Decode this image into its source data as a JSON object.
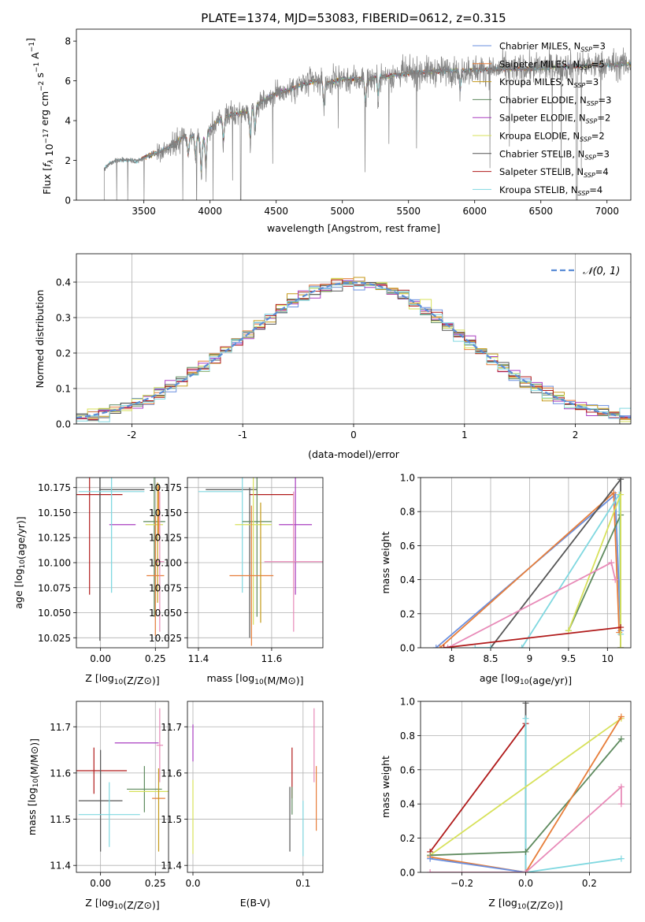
{
  "figure": {
    "title": "PLATE=1374, MJD=53083, FIBERID=0612, z=0.315"
  },
  "colors": {
    "Chabrier MILES": "#6a8fdf",
    "Salpeter MILES": "#e77e3a",
    "Kroupa MILES": "#c59a1a",
    "Chabrier ELODIE": "#5e8a5e",
    "Salpeter ELODIE": "#a93ec0",
    "Kroupa ELODIE": "#d7e15a",
    "Chabrier STELIB": "#555555",
    "Salpeter STELIB": "#b01a1a",
    "Kroupa STELIB": "#80d8e0",
    "data": "#808080",
    "pink": "#e88ab8"
  },
  "chart_data": [
    {
      "id": "spectrum",
      "type": "line",
      "title": "PLATE=1374, MJD=53083, FIBERID=0612, z=0.315",
      "xlabel": "wavelength [Angstrom, rest frame]",
      "ylabel": "Flux [f_λ 10^-17 erg cm^-2 s^-1 A^-1]",
      "xlim": [
        2990,
        7180
      ],
      "ylim": [
        0,
        8.6
      ],
      "xticks": [
        3500,
        4000,
        4500,
        5000,
        5500,
        6000,
        6500,
        7000
      ],
      "yticks": [
        0,
        2,
        4,
        6,
        8
      ],
      "legend_position": "top-right",
      "legend": [
        {
          "series": "Chabrier MILES",
          "label": "Chabrier MILES, N",
          "sub": "SSP",
          "tail": "=3"
        },
        {
          "series": "Salpeter MILES",
          "label": "Salpeter MILES, N",
          "sub": "SSP",
          "tail": "=5"
        },
        {
          "series": "Kroupa MILES",
          "label": "Kroupa MILES, N",
          "sub": "SSP",
          "tail": "=3"
        },
        {
          "series": "Chabrier ELODIE",
          "label": "Chabrier ELODIE, N",
          "sub": "SSP",
          "tail": "=3"
        },
        {
          "series": "Salpeter ELODIE",
          "label": "Salpeter ELODIE, N",
          "sub": "SSP",
          "tail": "=2"
        },
        {
          "series": "Kroupa ELODIE",
          "label": "Kroupa ELODIE, N",
          "sub": "SSP",
          "tail": "=2"
        },
        {
          "series": "Chabrier STELIB",
          "label": "Chabrier STELIB, N",
          "sub": "SSP",
          "tail": "=3"
        },
        {
          "series": "Salpeter STELIB",
          "label": "Salpeter STELIB, N",
          "sub": "SSP",
          "tail": "=4"
        },
        {
          "series": "Kroupa STELIB",
          "label": "Kroupa STELIB, N",
          "sub": "SSP",
          "tail": "=4"
        }
      ],
      "continuum": {
        "x": [
          3200,
          3230,
          3300,
          3400,
          3450,
          3500,
          3600,
          3700,
          3800,
          3900,
          3950,
          4000,
          4100,
          4200,
          4300,
          4400,
          4500,
          4600,
          4700,
          4800,
          4900,
          5000,
          5200,
          5400,
          5600,
          5800,
          6000,
          6200,
          6400,
          6600,
          6800,
          7000,
          7180
        ],
        "y": [
          1.55,
          1.8,
          2.05,
          2.0,
          1.95,
          2.15,
          2.4,
          2.7,
          3.2,
          3.2,
          3.1,
          3.6,
          4.2,
          4.35,
          4.5,
          5.0,
          5.35,
          5.55,
          5.8,
          6.0,
          5.9,
          6.1,
          6.1,
          6.3,
          6.45,
          6.5,
          6.55,
          6.6,
          6.6,
          6.7,
          6.75,
          6.8,
          6.85
        ]
      },
      "data_series_start": 3200,
      "model_series_start": [
        3480,
        3480,
        3480,
        3880,
        3880,
        3880,
        3200,
        3480,
        3200
      ]
    },
    {
      "id": "residuals",
      "type": "bar",
      "xlabel": "(data-model)/error",
      "ylabel": "Normed distribution",
      "xlim": [
        -2.5,
        2.5
      ],
      "ylim": [
        0,
        0.48
      ],
      "xticks": [
        -2,
        -1,
        0,
        1,
        2
      ],
      "yticks": [
        0.0,
        0.1,
        0.2,
        0.3,
        0.4
      ],
      "legend_position": "top-right",
      "legend": [
        {
          "label": "𝒩(0, 1)",
          "style": "dashed"
        }
      ],
      "bin_width": 0.1,
      "bin_start": -2.5
    },
    {
      "id": "age-vs-Z",
      "type": "scatter",
      "xlabel": "Z [log10(Z/Z⊙)]",
      "ylabel": "age  [log10(age/yr)]",
      "xlim": [
        -0.11,
        0.31
      ],
      "ylim": [
        10.015,
        10.185
      ],
      "xticks": [
        0.0,
        0.25
      ],
      "xticklabels": [
        "0.00",
        "0.25"
      ],
      "yticks": [
        10.025,
        10.05,
        10.075,
        10.1,
        10.125,
        10.15,
        10.175
      ],
      "errorbars": [
        {
          "series": "Salpeter STELIB",
          "x": -0.05,
          "y": 10.168,
          "xerr": 0.15,
          "yerr": 0.1
        },
        {
          "series": "Chabrier STELIB",
          "x": -0.003,
          "y": 10.173,
          "xerr": 0.003,
          "yerr": 0.151
        },
        {
          "series": "Kroupa STELIB",
          "x": 0.05,
          "y": 10.171,
          "xerr": 0.15,
          "yerr": 0.101
        },
        {
          "series": "Chabrier STELIB",
          "x": 0.1,
          "y": 10.173,
          "xerr": 0.1,
          "yerr": 0.0
        },
        {
          "series": "Salpeter ELODIE",
          "x": 0.1,
          "y": 10.138,
          "xerr": 0.06,
          "yerr": 0.0
        },
        {
          "series": "Kroupa STELIB",
          "x": 0.05,
          "y": 10.138,
          "xerr": 0.0,
          "yerr": 0.068
        },
        {
          "series": "Chabrier ELODIE",
          "x": 0.245,
          "y": 10.141,
          "xerr": 0.05,
          "yerr": 0.095
        },
        {
          "series": "Kroupa ELODIE",
          "x": 0.245,
          "y": 10.138,
          "xerr": 0.04,
          "yerr": 0.0
        },
        {
          "series": "Kroupa MILES",
          "x": 0.26,
          "y": 10.12,
          "xerr": 0.0,
          "yerr": 0.06
        },
        {
          "series": "Salpeter MILES",
          "x": 0.25,
          "y": 10.087,
          "xerr": 0.04,
          "yerr": 0.06
        },
        {
          "series": "pink",
          "x": 0.27,
          "y": 10.101,
          "xerr": 0.02,
          "yerr": 0.07
        },
        {
          "series": "Salpeter MILES",
          "x": 0.265,
          "y": 10.152,
          "xerr": 0.0,
          "yerr": 0.025
        }
      ]
    },
    {
      "id": "age-vs-mass",
      "type": "scatter",
      "xlabel": "mass [log10(M/M⊙)]",
      "ylabel": "",
      "xlim": [
        11.37,
        11.74
      ],
      "ylim": [
        10.015,
        10.185
      ],
      "xticks": [
        11.4,
        11.6
      ],
      "xticklabels": [
        "11.4",
        "11.6"
      ],
      "yticks": [
        10.025,
        10.05,
        10.075,
        10.1,
        10.125,
        10.15,
        10.175
      ],
      "errorbars": [
        {
          "series": "Kroupa STELIB",
          "x": 11.46,
          "y": 10.171,
          "xerr": 0.06,
          "yerr": 0.0
        },
        {
          "series": "Chabrier STELIB",
          "x": 11.49,
          "y": 10.173,
          "xerr": 0.07,
          "yerr": 0.0
        },
        {
          "series": "Salpeter STELIB",
          "x": 11.6,
          "y": 10.168,
          "xerr": 0.06,
          "yerr": 0.0
        },
        {
          "series": "Kroupa STELIB",
          "x": 11.52,
          "y": 10.138,
          "xerr": 0.0,
          "yerr": 0.068
        },
        {
          "series": "Chabrier STELIB",
          "x": 11.54,
          "y": 10.1,
          "xerr": 0.0,
          "yerr": 0.075
        },
        {
          "series": "Chabrier ELODIE",
          "x": 11.56,
          "y": 10.141,
          "xerr": 0.04,
          "yerr": 0.095
        },
        {
          "series": "Kroupa ELODIE",
          "x": 11.55,
          "y": 10.138,
          "xerr": 0.05,
          "yerr": 0.1
        },
        {
          "series": "Salpeter ELODIE",
          "x": 11.665,
          "y": 10.138,
          "xerr": 0.045,
          "yerr": 0.07
        },
        {
          "series": "Salpeter MILES",
          "x": 11.545,
          "y": 10.087,
          "xerr": 0.06,
          "yerr": 0.07
        },
        {
          "series": "pink",
          "x": 11.66,
          "y": 10.101,
          "xerr": 0.08,
          "yerr": 0.07
        },
        {
          "series": "Kroupa MILES",
          "x": 11.57,
          "y": 10.1,
          "xerr": 0.0,
          "yerr": 0.06
        }
      ]
    },
    {
      "id": "mass-weight-vs-age",
      "type": "line",
      "xlabel": "age  [log10(age/yr)]",
      "ylabel": "mass weight",
      "xlim": [
        7.6,
        10.3
      ],
      "ylim": [
        0.0,
        1.0
      ],
      "xticks": [
        8.0,
        8.5,
        9.0,
        9.5,
        10.0
      ],
      "yticks": [
        0.0,
        0.2,
        0.4,
        0.6,
        0.8,
        1.0
      ],
      "lines": [
        {
          "series": "Chabrier MILES",
          "x": [
            7.8,
            10.1,
            10.17
          ],
          "y": [
            0.0,
            0.9,
            0.1
          ]
        },
        {
          "series": "Salpeter MILES",
          "x": [
            7.85,
            10.08,
            10.15
          ],
          "y": [
            0.0,
            0.91,
            0.09
          ]
        },
        {
          "series": "Chabrier STELIB",
          "x": [
            8.5,
            10.17,
            10.17
          ],
          "y": [
            0.0,
            0.99,
            0.0
          ]
        },
        {
          "series": "Kroupa STELIB",
          "x": [
            8.9,
            10.15,
            10.17
          ],
          "y": [
            0.0,
            0.9,
            0.08
          ]
        },
        {
          "series": "Kroupa STELIB",
          "x": [
            8.3,
            8.5
          ],
          "y": [
            0.0,
            0.0
          ]
        },
        {
          "series": "Chabrier ELODIE",
          "x": [
            9.5,
            10.17,
            10.17
          ],
          "y": [
            0.1,
            0.78,
            0.0
          ]
        },
        {
          "series": "Kroupa ELODIE",
          "x": [
            9.5,
            10.17,
            10.17
          ],
          "y": [
            0.1,
            0.9,
            0.0
          ]
        },
        {
          "series": "pink",
          "x": [
            7.95,
            10.05,
            10.1
          ],
          "y": [
            0.0,
            0.5,
            0.4
          ]
        },
        {
          "series": "Salpeter STELIB",
          "x": [
            7.9,
            10.17
          ],
          "y": [
            0.0,
            0.12
          ]
        }
      ]
    },
    {
      "id": "mass-vs-Z",
      "type": "scatter",
      "xlabel": "Z [log10(Z/Z⊙)]",
      "ylabel": "mass [log10(M/M⊙)]",
      "xlim": [
        -0.11,
        0.31
      ],
      "ylim": [
        11.385,
        11.755
      ],
      "xticks": [
        0.0,
        0.25
      ],
      "xticklabels": [
        "0.00",
        "0.25"
      ],
      "yticks": [
        11.4,
        11.5,
        11.6,
        11.7
      ],
      "errorbars": [
        {
          "series": "Salpeter STELIB",
          "x": -0.03,
          "y": 11.605,
          "xerr": 0.15,
          "yerr": 0.05
        },
        {
          "series": "Chabrier STELIB",
          "x": 0.0,
          "y": 11.54,
          "xerr": 0.1,
          "yerr": 0.11
        },
        {
          "series": "Kroupa STELIB",
          "x": 0.04,
          "y": 11.51,
          "xerr": 0.14,
          "yerr": 0.07
        },
        {
          "series": "Salpeter ELODIE",
          "x": 0.165,
          "y": 11.665,
          "xerr": 0.1,
          "yerr": 0.0
        },
        {
          "series": "Chabrier ELODIE",
          "x": 0.2,
          "y": 11.565,
          "xerr": 0.08,
          "yerr": 0.05
        },
        {
          "series": "Kroupa ELODIE",
          "x": 0.22,
          "y": 11.56,
          "xerr": 0.09,
          "yerr": 0.0
        },
        {
          "series": "Salpeter MILES",
          "x": 0.265,
          "y": 11.545,
          "xerr": 0.03,
          "yerr": 0.0
        },
        {
          "series": "Kroupa MILES",
          "x": 0.265,
          "y": 11.52,
          "xerr": 0.0,
          "yerr": 0.09
        },
        {
          "series": "pink",
          "x": 0.27,
          "y": 11.66,
          "xerr": 0.015,
          "yerr": 0.08
        }
      ]
    },
    {
      "id": "mass-vs-EBV",
      "type": "scatter",
      "xlabel": "E(B-V)",
      "ylabel": "",
      "xlim": [
        -0.005,
        0.118
      ],
      "ylim": [
        11.385,
        11.755
      ],
      "xticks": [
        0.0,
        0.1
      ],
      "xticklabels": [
        "0.0",
        "0.1"
      ],
      "yticks": [
        11.4,
        11.5,
        11.6,
        11.7
      ],
      "errorbars": [
        {
          "series": "Salpeter ELODIE",
          "x": 0.0,
          "y": 11.665,
          "xerr": 0.0,
          "yerr": 0.04
        },
        {
          "series": "Kroupa ELODIE",
          "x": 0.0,
          "y": 11.505,
          "xerr": 0.0,
          "yerr": 0.08
        },
        {
          "series": "Chabrier STELIB",
          "x": 0.088,
          "y": 11.5,
          "xerr": 0.0,
          "yerr": 0.07
        },
        {
          "series": "Salpeter STELIB",
          "x": 0.09,
          "y": 11.6,
          "xerr": 0.0,
          "yerr": 0.055
        },
        {
          "series": "Chabrier ELODIE",
          "x": 0.09,
          "y": 11.54,
          "xerr": 0.0,
          "yerr": 0.03
        },
        {
          "series": "Kroupa STELIB",
          "x": 0.1,
          "y": 11.48,
          "xerr": 0.0,
          "yerr": 0.06
        },
        {
          "series": "pink",
          "x": 0.11,
          "y": 11.66,
          "xerr": 0.0,
          "yerr": 0.08
        },
        {
          "series": "Salpeter MILES",
          "x": 0.112,
          "y": 11.545,
          "xerr": 0.0,
          "yerr": 0.07
        }
      ]
    },
    {
      "id": "mass-weight-vs-Z",
      "type": "line",
      "xlabel": "Z [log10(Z/Z⊙)]",
      "ylabel": "mass weight",
      "xlim": [
        -0.33,
        0.33
      ],
      "ylim": [
        0.0,
        1.0
      ],
      "xticks": [
        -0.2,
        0.0,
        0.2
      ],
      "xticklabels": [
        "−0.2",
        "0.0",
        "0.2"
      ],
      "yticks": [
        0.0,
        0.2,
        0.4,
        0.6,
        0.8,
        1.0
      ],
      "lines": [
        {
          "series": "Salpeter STELIB",
          "x": [
            -0.3,
            0.0
          ],
          "y": [
            0.12,
            0.87
          ]
        },
        {
          "series": "Chabrier STELIB",
          "x": [
            0.0,
            0.0
          ],
          "y": [
            0.0,
            0.99
          ]
        },
        {
          "series": "Kroupa STELIB",
          "x": [
            0.0,
            0.0,
            0.3
          ],
          "y": [
            0.9,
            0.0,
            0.08
          ]
        },
        {
          "series": "Kroupa ELODIE",
          "x": [
            -0.3,
            0.3
          ],
          "y": [
            0.1,
            0.9
          ]
        },
        {
          "series": "Chabrier ELODIE",
          "x": [
            -0.3,
            0.0,
            0.3
          ],
          "y": [
            0.1,
            0.12,
            0.78
          ]
        },
        {
          "series": "Salpeter MILES",
          "x": [
            -0.3,
            0.0,
            0.3
          ],
          "y": [
            0.09,
            0.0,
            0.91
          ]
        },
        {
          "series": "Chabrier MILES",
          "x": [
            -0.3,
            0.0
          ],
          "y": [
            0.08,
            0.0
          ]
        },
        {
          "series": "pink",
          "x": [
            -0.3,
            0.0,
            0.3,
            0.3
          ],
          "y": [
            0.0,
            0.0,
            0.5,
            0.4
          ]
        }
      ]
    }
  ]
}
